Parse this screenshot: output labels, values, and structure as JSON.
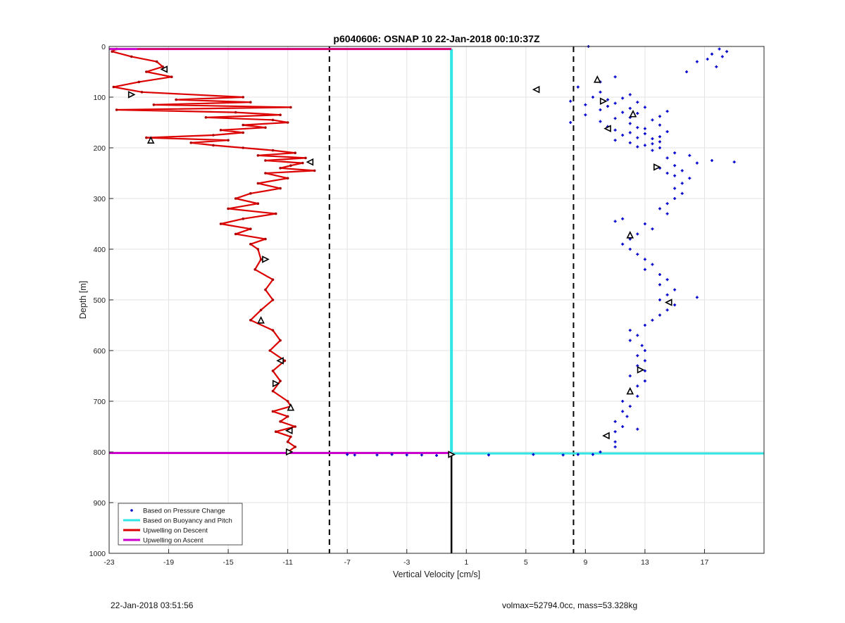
{
  "footer": {
    "timestamp": "22-Jan-2018 03:51:56",
    "info": "volmax=52794.0cc, mass=53.328kg"
  },
  "chart_data": {
    "type": "line",
    "title": "p6040606: OSNAP 10 22-Jan-2018 00:10:37Z",
    "xlabel": "Vertical Velocity [cm/s]",
    "ylabel": "Depth [m]",
    "xlim": [
      -23,
      21
    ],
    "ylim": [
      0,
      1000
    ],
    "y_reversed": true,
    "xticks": [
      -23,
      -19,
      -15,
      -11,
      -7,
      -3,
      1,
      5,
      9,
      13,
      17
    ],
    "yticks": [
      0,
      100,
      200,
      300,
      400,
      500,
      600,
      700,
      800,
      900,
      1000
    ],
    "grid": true,
    "legend_position": "bottom-left",
    "legend": [
      {
        "label": "Based on Pressure Change",
        "color": "#0000cc",
        "style": "dot"
      },
      {
        "label": "Based on Buoyancy and Pitch",
        "color": "#33e6e6",
        "style": "line"
      },
      {
        "label": "Upwelling on Descent",
        "color": "#dd0000",
        "style": "line"
      },
      {
        "label": "Upwelling on Ascent",
        "color": "#cc00cc",
        "style": "line"
      }
    ],
    "dashed_lines_x": [
      -8.2,
      8.2
    ],
    "series": [
      {
        "name": "Upwelling on Descent",
        "color": "#dd0000",
        "depth": [
          5,
          10,
          20,
          30,
          40,
          50,
          60,
          70,
          80,
          90,
          100,
          105,
          110,
          115,
          120,
          125,
          130,
          135,
          140,
          145,
          150,
          155,
          160,
          165,
          170,
          175,
          180,
          185,
          190,
          195,
          200,
          205,
          210,
          215,
          220,
          225,
          230,
          235,
          240,
          245,
          250,
          260,
          270,
          280,
          290,
          300,
          310,
          320,
          330,
          340,
          350,
          360,
          370,
          380,
          390,
          400,
          420,
          440,
          460,
          480,
          500,
          520,
          540,
          560,
          580,
          600,
          620,
          640,
          660,
          680,
          700,
          710,
          720,
          730,
          740,
          750,
          760,
          770,
          780,
          790,
          800
        ],
        "velocity": [
          -22.5,
          -22.8,
          -21.5,
          -19.8,
          -19.4,
          -20.5,
          -18.8,
          -21.0,
          -22.7,
          -20.8,
          -14.0,
          -18.5,
          -13.5,
          -20.0,
          -10.8,
          -22.5,
          -14.5,
          -11.5,
          -16.5,
          -12.0,
          -11.0,
          -14.0,
          -12.5,
          -15.5,
          -14.0,
          -16.0,
          -20.5,
          -15.0,
          -17.5,
          -16.0,
          -14.0,
          -12.0,
          -10.5,
          -13.0,
          -9.8,
          -12.5,
          -10.0,
          -10.8,
          -11.5,
          -9.2,
          -12.5,
          -11.0,
          -13.0,
          -11.5,
          -13.5,
          -14.5,
          -13.0,
          -15.0,
          -11.8,
          -14.0,
          -15.5,
          -13.5,
          -14.5,
          -12.5,
          -13.5,
          -13.0,
          -12.8,
          -13.2,
          -12.0,
          -12.5,
          -12.0,
          -12.8,
          -13.5,
          -12.0,
          -11.5,
          -12.2,
          -11.2,
          -12.0,
          -11.5,
          -12.0,
          -11.0,
          -10.8,
          -12.0,
          -11.0,
          -11.5,
          -10.5,
          -11.8,
          -10.8,
          -11.0,
          -10.5,
          -11.0
        ]
      },
      {
        "name": "Based on Buoyancy and Pitch",
        "color": "#33e6e6",
        "depth": [
          5,
          800
        ],
        "velocity": [
          0.0,
          0.0
        ]
      },
      {
        "name": "Upwelling on Ascent",
        "color": "#cc00cc",
        "depth": [
          5,
          802
        ],
        "velocity": [
          0.0,
          0.0
        ]
      },
      {
        "name": "Based on Pressure Change",
        "color": "#0000cc",
        "depth": [
          0,
          5,
          10,
          15,
          20,
          25,
          30,
          40,
          50,
          60,
          70,
          80,
          85,
          90,
          95,
          100,
          102,
          105,
          108,
          110,
          112,
          115,
          118,
          120,
          122,
          125,
          128,
          130,
          132,
          135,
          138,
          140,
          142,
          145,
          148,
          150,
          152,
          155,
          158,
          160,
          162,
          165,
          168,
          170,
          172,
          175,
          178,
          180,
          182,
          185,
          188,
          190,
          192,
          195,
          198,
          200,
          205,
          210,
          215,
          220,
          225,
          228,
          230,
          235,
          240,
          245,
          250,
          255,
          260,
          270,
          280,
          290,
          300,
          310,
          320,
          330,
          340,
          345,
          350,
          360,
          370,
          380,
          390,
          400,
          410,
          420,
          430,
          440,
          450,
          460,
          470,
          480,
          490,
          495,
          500,
          510,
          520,
          530,
          540,
          550,
          560,
          570,
          580,
          590,
          600,
          610,
          620,
          630,
          640,
          650,
          660,
          670,
          680,
          690,
          700,
          710,
          720,
          730,
          740,
          750,
          755,
          760,
          770,
          780,
          790,
          800,
          805
        ],
        "velocity": [
          9.2,
          18.0,
          18.5,
          17.5,
          18.2,
          17.2,
          16.5,
          17.8,
          15.8,
          11.0,
          10.0,
          8.5,
          5.8,
          10.0,
          12.0,
          9.5,
          11.5,
          10.5,
          8.0,
          12.5,
          11.0,
          9.0,
          10.5,
          13.0,
          12.0,
          10.0,
          14.5,
          11.5,
          12.5,
          9.0,
          14.0,
          12.0,
          11.0,
          13.5,
          10.0,
          8.0,
          12.0,
          14.0,
          10.5,
          12.5,
          13.0,
          11.0,
          14.5,
          12.0,
          13.0,
          11.5,
          14.0,
          12.5,
          13.5,
          11.0,
          14.0,
          12.0,
          13.5,
          13.0,
          12.5,
          14.0,
          13.5,
          15.0,
          16.0,
          14.5,
          17.5,
          19.0,
          16.5,
          15.0,
          14.0,
          15.5,
          14.5,
          15.0,
          16.0,
          15.5,
          15.0,
          15.5,
          15.0,
          14.5,
          14.0,
          14.5,
          11.5,
          11.0,
          13.0,
          13.5,
          12.5,
          12.0,
          11.5,
          12.0,
          12.5,
          13.0,
          13.5,
          13.0,
          14.0,
          14.5,
          14.0,
          15.0,
          14.5,
          16.5,
          14.0,
          15.0,
          14.5,
          14.0,
          13.5,
          13.0,
          12.0,
          12.5,
          12.0,
          12.8,
          13.0,
          12.5,
          13.0,
          12.5,
          13.0,
          12.0,
          13.0,
          12.5,
          12.0,
          12.5,
          11.5,
          12.0,
          11.5,
          11.8,
          11.0,
          11.5,
          12.5,
          11.0,
          10.5,
          11.0,
          11.0,
          10.0,
          9.5
        ]
      },
      {
        "name": "Based on Pressure Change (bottom turn)",
        "color": "#0000cc",
        "depth": [
          805,
          806,
          805,
          806,
          807,
          806,
          805,
          806,
          805,
          806,
          806
        ],
        "velocity": [
          -7.0,
          -5.0,
          -4.0,
          -3.0,
          -1.0,
          2.5,
          5.5,
          7.5,
          8.5,
          -6.5,
          -2.0
        ]
      }
    ],
    "markers": [
      {
        "depth": 45,
        "velocity": -19.3
      },
      {
        "depth": 95,
        "velocity": -21.5
      },
      {
        "depth": 185,
        "velocity": -20.2
      },
      {
        "depth": 228,
        "velocity": -9.5
      },
      {
        "depth": 420,
        "velocity": -12.5
      },
      {
        "depth": 540,
        "velocity": -12.8
      },
      {
        "depth": 620,
        "velocity": -11.5
      },
      {
        "depth": 665,
        "velocity": -11.8
      },
      {
        "depth": 712,
        "velocity": -10.8
      },
      {
        "depth": 758,
        "velocity": -10.9
      },
      {
        "depth": 800,
        "velocity": -10.9
      },
      {
        "depth": 65,
        "velocity": 9.8
      },
      {
        "depth": 85,
        "velocity": 5.7
      },
      {
        "depth": 108,
        "velocity": 10.2
      },
      {
        "depth": 133,
        "velocity": 12.2
      },
      {
        "depth": 162,
        "velocity": 10.5
      },
      {
        "depth": 238,
        "velocity": 13.8
      },
      {
        "depth": 372,
        "velocity": 12.0
      },
      {
        "depth": 505,
        "velocity": 14.6
      },
      {
        "depth": 638,
        "velocity": 12.7
      },
      {
        "depth": 680,
        "velocity": 12.0
      },
      {
        "depth": 768,
        "velocity": 10.4
      },
      {
        "depth": 805,
        "velocity": 0.0
      }
    ]
  }
}
